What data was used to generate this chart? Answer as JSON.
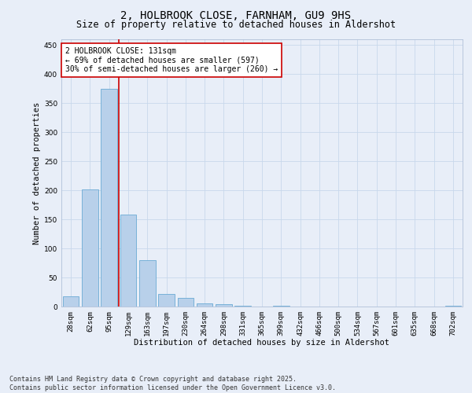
{
  "title": "2, HOLBROOK CLOSE, FARNHAM, GU9 9HS",
  "subtitle": "Size of property relative to detached houses in Aldershot",
  "xlabel": "Distribution of detached houses by size in Aldershot",
  "ylabel": "Number of detached properties",
  "categories": [
    "28sqm",
    "62sqm",
    "95sqm",
    "129sqm",
    "163sqm",
    "197sqm",
    "230sqm",
    "264sqm",
    "298sqm",
    "331sqm",
    "365sqm",
    "399sqm",
    "432sqm",
    "466sqm",
    "500sqm",
    "534sqm",
    "567sqm",
    "601sqm",
    "635sqm",
    "668sqm",
    "702sqm"
  ],
  "values": [
    18,
    202,
    375,
    158,
    80,
    22,
    15,
    6,
    4,
    1,
    0,
    1,
    0,
    0,
    0,
    0,
    0,
    0,
    0,
    0,
    1
  ],
  "bar_color": "#b8d0ea",
  "bar_edge_color": "#6aaad4",
  "grid_color": "#c8d8ec",
  "background_color": "#e8eef8",
  "red_line_index": 3,
  "annotation_line1": "2 HOLBROOK CLOSE: 131sqm",
  "annotation_line2": "← 69% of detached houses are smaller (597)",
  "annotation_line3": "30% of semi-detached houses are larger (260) →",
  "annotation_box_color": "#ffffff",
  "annotation_box_edge": "#cc0000",
  "red_line_color": "#cc0000",
  "ylim": [
    0,
    460
  ],
  "yticks": [
    0,
    50,
    100,
    150,
    200,
    250,
    300,
    350,
    400,
    450
  ],
  "footer_line1": "Contains HM Land Registry data © Crown copyright and database right 2025.",
  "footer_line2": "Contains public sector information licensed under the Open Government Licence v3.0.",
  "title_fontsize": 10,
  "subtitle_fontsize": 8.5,
  "axis_label_fontsize": 7.5,
  "tick_fontsize": 6.5,
  "annotation_fontsize": 7,
  "footer_fontsize": 6
}
